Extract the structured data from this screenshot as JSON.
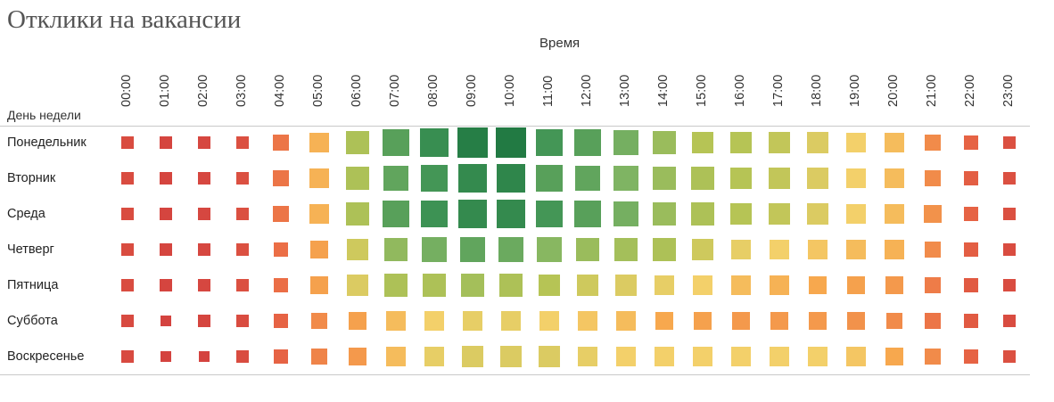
{
  "title": "Отклики на вакансии",
  "chart_data": {
    "type": "heatmap",
    "title": "Отклики на вакансии",
    "xlabel": "Время",
    "ylabel": "День недели",
    "x": [
      "00:00",
      "01:00",
      "02:00",
      "03:00",
      "04:00",
      "05:00",
      "06:00",
      "07:00",
      "08:00",
      "09:00",
      "10:00",
      "11:00",
      "12:00",
      "13:00",
      "14:00",
      "15:00",
      "16:00",
      "17:00",
      "18:00",
      "19:00",
      "20:00",
      "21:00",
      "22:00",
      "23:00"
    ],
    "y": [
      "Понедельник",
      "Вторник",
      "Среда",
      "Четверг",
      "Пятница",
      "Суббота",
      "Воскресенье"
    ],
    "scale": "relative intensity 0–100; color red (low) → yellow → green (high); square size grows with value",
    "colors": {
      "low": "#c9303c",
      "mid": "#f5d36a",
      "high": "#1f7a3e"
    },
    "values": [
      [
        12,
        9,
        10,
        14,
        28,
        44,
        62,
        80,
        88,
        96,
        98,
        84,
        80,
        74,
        66,
        60,
        60,
        58,
        54,
        50,
        46,
        34,
        22,
        14
      ],
      [
        12,
        9,
        10,
        14,
        28,
        44,
        62,
        78,
        84,
        90,
        92,
        80,
        78,
        72,
        66,
        62,
        60,
        58,
        54,
        50,
        46,
        34,
        20,
        14
      ],
      [
        12,
        9,
        10,
        14,
        28,
        44,
        62,
        80,
        86,
        90,
        90,
        84,
        80,
        74,
        66,
        62,
        60,
        58,
        54,
        50,
        46,
        36,
        22,
        14
      ],
      [
        12,
        9,
        10,
        14,
        26,
        40,
        56,
        68,
        74,
        78,
        76,
        70,
        66,
        64,
        62,
        56,
        52,
        50,
        48,
        46,
        44,
        34,
        20,
        12
      ],
      [
        12,
        9,
        10,
        14,
        26,
        40,
        54,
        62,
        62,
        64,
        62,
        60,
        56,
        54,
        52,
        50,
        46,
        44,
        42,
        40,
        38,
        30,
        18,
        12
      ],
      [
        11,
        8,
        9,
        12,
        22,
        34,
        40,
        46,
        50,
        52,
        52,
        50,
        48,
        46,
        42,
        40,
        38,
        38,
        38,
        36,
        34,
        28,
        18,
        12
      ],
      [
        11,
        8,
        8,
        12,
        22,
        32,
        38,
        46,
        52,
        54,
        54,
        54,
        52,
        50,
        50,
        50,
        50,
        50,
        50,
        48,
        42,
        34,
        22,
        14
      ]
    ]
  }
}
